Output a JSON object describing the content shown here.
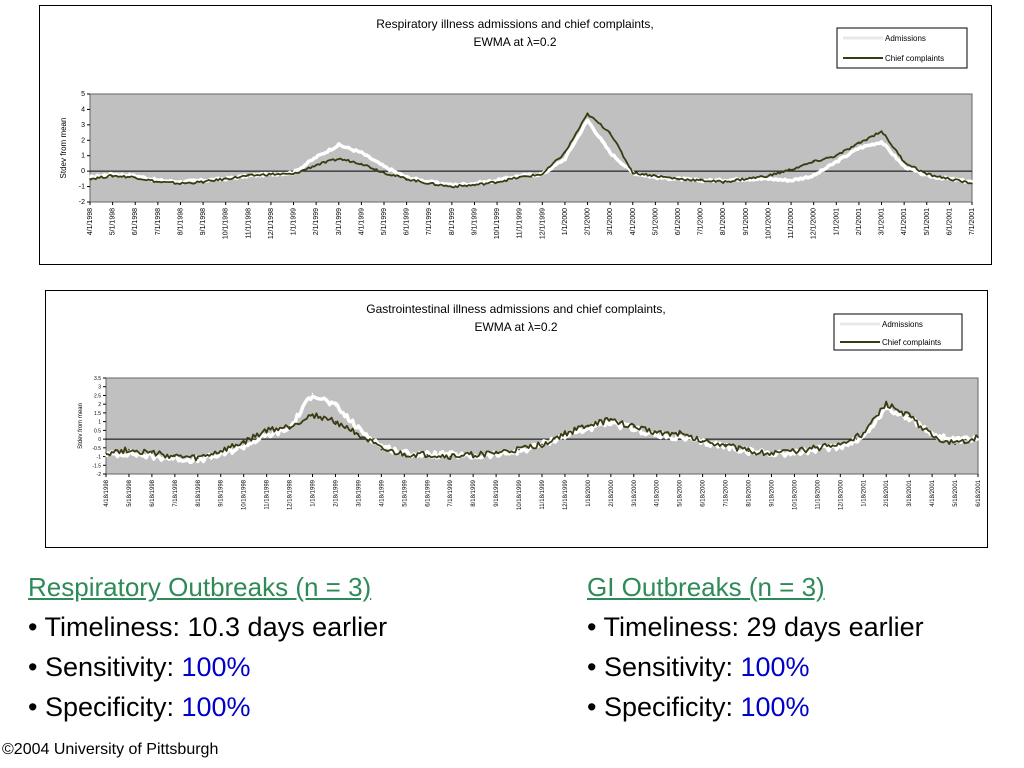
{
  "chart_data": [
    {
      "type": "line",
      "title": "Respiratory illness admissions and chief complaints,",
      "subtitle": "EWMA at λ=0.2",
      "ylabel": "Stdev from mean",
      "xlabel": "",
      "ylim": [
        -2,
        5
      ],
      "yticks": [
        -2,
        -1,
        0,
        1,
        2,
        3,
        4,
        5
      ],
      "grid": false,
      "background": "#c0c0c0",
      "legend": "top-right",
      "x": [
        "4/1/1998",
        "5/1/1998",
        "6/1/1998",
        "7/1/1998",
        "8/1/1998",
        "9/1/1998",
        "10/1/1998",
        "11/1/1998",
        "12/1/1998",
        "1/1/1999",
        "2/1/1999",
        "3/1/1999",
        "4/1/1999",
        "5/1/1999",
        "6/1/1999",
        "7/1/1999",
        "8/1/1999",
        "9/1/1999",
        "10/1/1999",
        "11/1/1999",
        "12/1/1999",
        "1/1/2000",
        "2/1/2000",
        "3/1/2000",
        "4/1/2000",
        "5/1/2000",
        "6/1/2000",
        "7/1/2000",
        "8/1/2000",
        "9/1/2000",
        "10/1/2000",
        "11/1/2000",
        "12/1/2000",
        "1/1/2001",
        "2/1/2001",
        "3/1/2001",
        "4/1/2001",
        "5/1/2001",
        "6/1/2001",
        "7/1/2001"
      ],
      "series": [
        {
          "name": "Admissions",
          "color": "#ffffff",
          "values": [
            -0.4,
            -0.2,
            -0.3,
            -0.6,
            -0.7,
            -0.6,
            -0.5,
            -0.3,
            -0.2,
            -0.1,
            0.9,
            1.7,
            1.2,
            0.3,
            -0.4,
            -0.7,
            -0.9,
            -0.8,
            -0.6,
            -0.3,
            -0.2,
            0.8,
            3.3,
            1.2,
            -0.1,
            -0.4,
            -0.5,
            -0.6,
            -0.6,
            -0.5,
            -0.5,
            -0.6,
            -0.3,
            0.6,
            1.5,
            1.9,
            0.3,
            -0.3,
            -0.5,
            -0.7
          ]
        },
        {
          "name": "Chief complaints",
          "color": "#3b3b12",
          "values": [
            -0.5,
            -0.3,
            -0.4,
            -0.7,
            -0.8,
            -0.7,
            -0.5,
            -0.3,
            -0.2,
            -0.2,
            0.4,
            0.8,
            0.5,
            -0.1,
            -0.5,
            -0.8,
            -1.0,
            -0.9,
            -0.7,
            -0.4,
            -0.2,
            1.2,
            3.7,
            2.5,
            -0.1,
            -0.3,
            -0.5,
            -0.6,
            -0.7,
            -0.5,
            -0.3,
            0.1,
            0.6,
            1.0,
            1.8,
            2.6,
            0.6,
            -0.2,
            -0.5,
            -0.8
          ]
        }
      ]
    },
    {
      "type": "line",
      "title": "Gastrointestinal illness admissions and chief complaints,",
      "subtitle": "EWMA at λ=0.2",
      "ylabel": "Stdev from mean",
      "xlabel": "",
      "ylim": [
        -2,
        3.5
      ],
      "yticks": [
        -2,
        -1.5,
        -1,
        -0.5,
        0,
        0.5,
        1,
        1.5,
        2,
        2.5,
        3,
        3.5
      ],
      "grid": false,
      "background": "#c0c0c0",
      "legend": "top-right",
      "x": [
        "4/18/1998",
        "5/18/1998",
        "6/18/1998",
        "7/18/1998",
        "8/18/1998",
        "9/18/1998",
        "10/18/1998",
        "11/18/1998",
        "12/18/1998",
        "1/18/1999",
        "2/18/1999",
        "3/18/1999",
        "4/18/1999",
        "5/18/1999",
        "6/18/1999",
        "7/18/1999",
        "8/18/1999",
        "9/18/1999",
        "10/18/1999",
        "11/18/1999",
        "12/18/1999",
        "1/18/2000",
        "2/18/2000",
        "3/18/2000",
        "4/18/2000",
        "5/18/2000",
        "6/18/2000",
        "7/18/2000",
        "8/18/2000",
        "9/18/2000",
        "10/18/2000",
        "11/18/2000",
        "12/18/2000",
        "1/18/2001",
        "2/18/2001",
        "3/18/2001",
        "4/18/2001",
        "5/18/2001",
        "6/18/2001"
      ],
      "series": [
        {
          "name": "Admissions",
          "color": "#ffffff",
          "values": [
            -0.9,
            -0.8,
            -1.0,
            -1.1,
            -1.2,
            -0.9,
            -0.4,
            0.2,
            0.6,
            2.6,
            1.9,
            0.6,
            -0.4,
            -0.8,
            -0.9,
            -0.9,
            -1.0,
            -0.9,
            -0.7,
            -0.3,
            0.2,
            0.6,
            0.9,
            0.6,
            0.2,
            0.1,
            -0.2,
            -0.4,
            -0.7,
            -0.8,
            -0.8,
            -0.6,
            -0.4,
            0.1,
            1.8,
            1.2,
            0.3,
            -0.1,
            0.0
          ]
        },
        {
          "name": "Chief complaints",
          "color": "#3b3b12",
          "values": [
            -0.8,
            -0.6,
            -0.8,
            -1.0,
            -1.1,
            -0.7,
            -0.2,
            0.5,
            0.7,
            1.4,
            1.0,
            0.3,
            -0.6,
            -0.9,
            -0.9,
            -1.0,
            -0.9,
            -0.8,
            -0.6,
            -0.3,
            0.3,
            0.8,
            1.1,
            0.7,
            0.4,
            0.3,
            -0.1,
            -0.3,
            -0.7,
            -0.8,
            -0.7,
            -0.5,
            -0.3,
            0.3,
            2.0,
            1.3,
            0.2,
            -0.3,
            0.1
          ]
        }
      ]
    }
  ],
  "left_col": {
    "title": "Respiratory Outbreaks (n = 3)",
    "b1": "• Timeliness: 10.3 days earlier",
    "b2_label": "• Sensitivity: ",
    "b2_value": "100%",
    "b3_label": "• Specificity: ",
    "b3_value": "100%"
  },
  "right_col": {
    "title": "GI Outbreaks (n = 3)",
    "b1": "• Timeliness: 29 days earlier",
    "b2_label": "• Sensitivity: ",
    "b2_value": "100%",
    "b3_label": "• Specificity: ",
    "b3_value": "100%"
  },
  "copyright": "©2004 University of Pittsburgh"
}
